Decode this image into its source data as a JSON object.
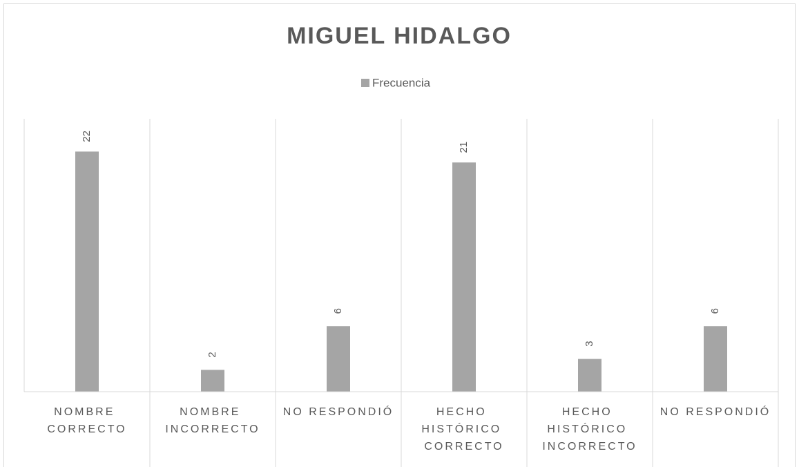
{
  "chart_data": {
    "type": "bar",
    "title": "MIGUEL HIDALGO",
    "legend": "Frecuencia",
    "categories": [
      "NOMBRE CORRECTO",
      "NOMBRE INCORRECTO",
      "NO RESPONDIÓ",
      "HECHO HISTÓRICO CORRECTO",
      "HECHO HISTÓRICO INCORRECTO",
      "NO RESPONDIÓ"
    ],
    "series": [
      {
        "name": "Frecuencia",
        "color": "#a5a5a5",
        "values": [
          22,
          2,
          6,
          21,
          3,
          6
        ]
      }
    ],
    "ylim": [
      0,
      25
    ]
  }
}
